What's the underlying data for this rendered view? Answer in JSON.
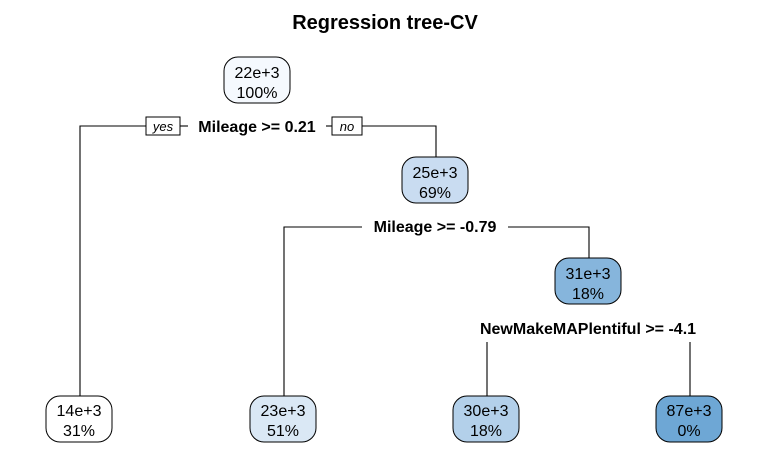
{
  "title": "Regression tree-CV",
  "branch_labels": {
    "yes": "yes",
    "no": "no"
  },
  "nodes": [
    {
      "id": "root",
      "value": "22e+3",
      "percent": "100%",
      "fill": "#f5f9fe"
    },
    {
      "id": "n2",
      "value": "25e+3",
      "percent": "69%",
      "fill": "#c9dcf1"
    },
    {
      "id": "n3",
      "value": "31e+3",
      "percent": "18%",
      "fill": "#86b5dc"
    },
    {
      "id": "leaf1",
      "value": "14e+3",
      "percent": "31%",
      "fill": "#ffffff"
    },
    {
      "id": "leaf2",
      "value": "23e+3",
      "percent": "51%",
      "fill": "#dae8f5"
    },
    {
      "id": "leaf3",
      "value": "30e+3",
      "percent": "18%",
      "fill": "#b3d0ea"
    },
    {
      "id": "leaf4",
      "value": "87e+3",
      "percent": "0%",
      "fill": "#6ea7d5"
    }
  ],
  "splits": [
    {
      "id": "s1",
      "label": "Mileage >= 0.21"
    },
    {
      "id": "s2",
      "label": "Mileage >= -0.79"
    },
    {
      "id": "s3",
      "label": "NewMakeMAPlentiful >= -4.1"
    }
  ]
}
